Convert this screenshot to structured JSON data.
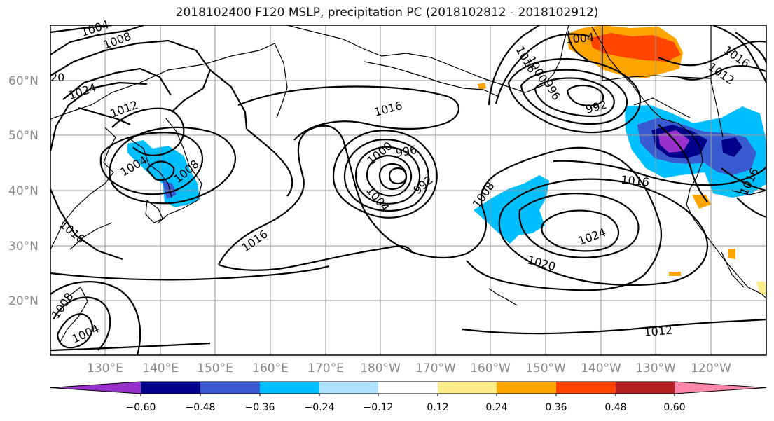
{
  "title": "2018102400 F120 MSLP, precipitation PC (2018102812 - 2018102912)",
  "lat_labels": [
    "60°N",
    "50°N",
    "40°N",
    "30°N",
    "20°N"
  ],
  "lon_labels": [
    "130°E",
    "140°E",
    "150°E",
    "160°E",
    "170°E",
    "180°W",
    "170°W",
    "160°W",
    "150°W",
    "140°W",
    "130°W",
    "120°W"
  ],
  "colorbar": {
    "colors": [
      "#9932CC",
      "#00008B",
      "#3A5BD0",
      "#00BFFF",
      "#B0E2FF",
      "#FFFFFF",
      "#FFEC8B",
      "#FFA500",
      "#FF4500",
      "#B22222",
      "#FF88AA"
    ],
    "tick_labels": [
      "−0.60",
      "−0.48",
      "−0.36",
      "−0.24",
      "−0.12",
      "0.12",
      "0.24",
      "0.36",
      "0.48",
      "0.60"
    ]
  },
  "contour_labels": [
    "1004",
    "1008",
    "20",
    "1024",
    "1012",
    "1004",
    "1008",
    "1016",
    "1016",
    "1016",
    "1000",
    "996",
    "992",
    "1004",
    "1016",
    "1000",
    "996",
    "992",
    "1008",
    "1016",
    "1024",
    "1020",
    "1008",
    "1004",
    "1012",
    "1004",
    "1012",
    "1016",
    "1016"
  ]
}
